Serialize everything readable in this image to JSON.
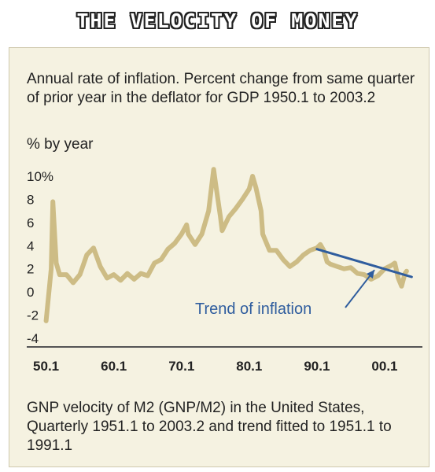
{
  "header": {
    "title": "THE VELOCITY OF MONEY"
  },
  "chart_data": {
    "type": "line",
    "title": "THE VELOCITY OF MONEY",
    "subtitle": "Annual rate of inflation. Percent change from same quarter of prior year in the deflator for GDP 1950.1 to 2003.2",
    "ylabel": "% by year",
    "ylim": [
      -4,
      10
    ],
    "xlim": [
      1949,
      2005
    ],
    "yticks": [
      "10%",
      "8",
      "6",
      "4",
      "2",
      "0",
      "-2",
      "-4"
    ],
    "ytick_values": [
      10,
      8,
      6,
      4,
      2,
      0,
      -2,
      -4
    ],
    "xticks": [
      "50.1",
      "60.1",
      "70.1",
      "80.1",
      "90.1",
      "00.1"
    ],
    "xtick_values": [
      1950,
      1960,
      1970,
      1980,
      1990,
      2000
    ],
    "grid": false,
    "legend": "none",
    "colors": {
      "inflation": "#cdbc85",
      "trend": "#2f5d9e"
    },
    "series": [
      {
        "x": [
          1950,
          1950.75,
          1951,
          1951.5,
          1952,
          1953,
          1954,
          1955,
          1956,
          1957,
          1958,
          1959,
          1960,
          1961,
          1962,
          1963,
          1964,
          1965,
          1966,
          1967,
          1968,
          1969,
          1970,
          1970.75,
          1971,
          1972,
          1973,
          1974,
          1974.75,
          1975,
          1975.75,
          1976,
          1977,
          1978,
          1979,
          1980,
          1980.5,
          1981,
          1981.75,
          1982,
          1983,
          1984,
          1985,
          1986,
          1987,
          1988,
          1989,
          1990,
          1990.5,
          1991,
          1991.5,
          1992,
          1993,
          1994,
          1995,
          1996,
          1997,
          1998,
          1999,
          2000,
          2001,
          2001.5,
          2002,
          2002.5,
          2003,
          2003.25
        ],
        "values": [
          -2.5,
          2,
          7.8,
          2.5,
          1.5,
          1.5,
          0.8,
          1.5,
          3.2,
          3.8,
          2.2,
          1.2,
          1.5,
          1.0,
          1.6,
          1.1,
          1.6,
          1.4,
          2.5,
          2.8,
          3.7,
          4.2,
          5.0,
          5.8,
          5.0,
          4.1,
          5.0,
          7.0,
          10.6,
          9.5,
          6.5,
          5.3,
          6.5,
          7.2,
          8.0,
          8.9,
          10.0,
          9.0,
          7.0,
          5.0,
          3.6,
          3.6,
          2.8,
          2.2,
          2.6,
          3.2,
          3.6,
          3.8,
          4.1,
          3.6,
          2.6,
          2.4,
          2.2,
          2.0,
          2.1,
          1.6,
          1.5,
          1.1,
          1.4,
          2.0,
          2.3,
          2.5,
          1.2,
          0.5,
          1.6,
          1.8
        ]
      },
      {
        "x": [
          1990,
          2004
        ],
        "values": [
          3.7,
          1.3
        ]
      }
    ],
    "annotations": [
      {
        "text": "Trend of inflation",
        "arrow_target": [
          1998.5,
          1.9
        ]
      }
    ]
  },
  "footnote": "GNP velocity of M2 (GNP/M2) in the United States, Quarterly 1951.1 to 2003.2 and trend fitted to 1951.1 to 1991.1"
}
